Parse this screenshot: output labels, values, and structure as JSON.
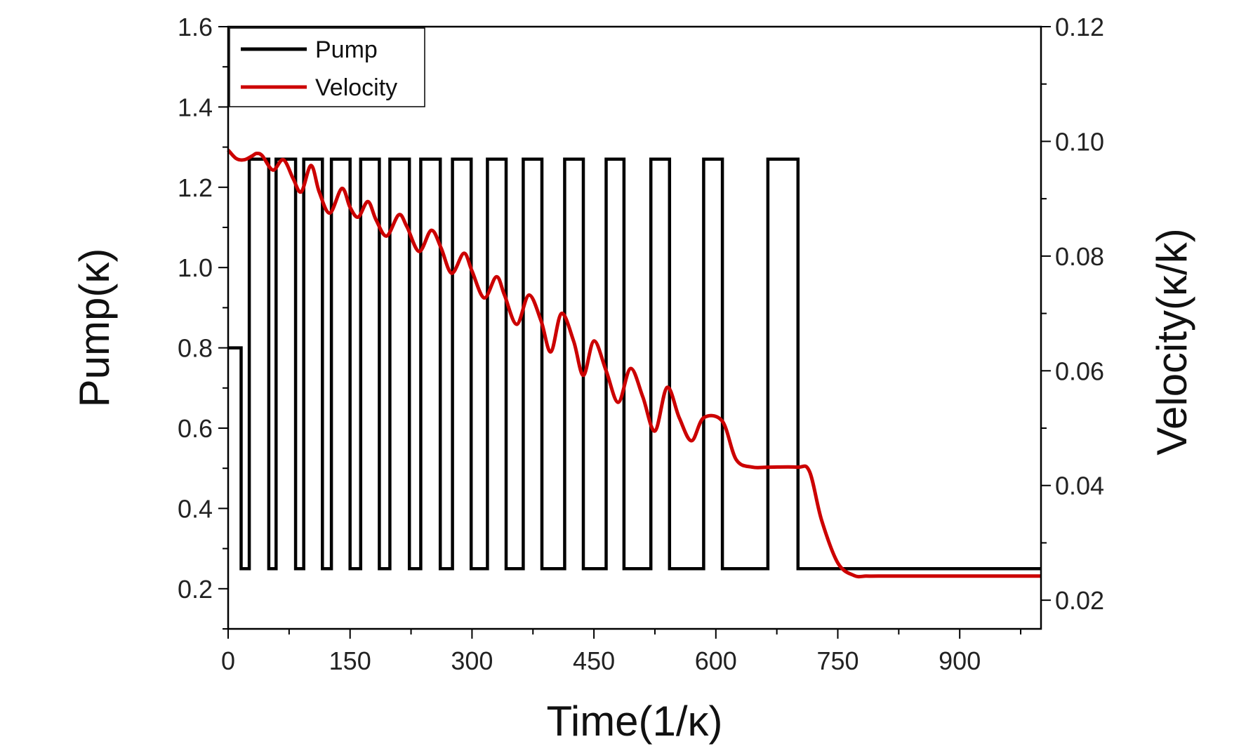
{
  "chart_data": {
    "type": "line",
    "xlabel": "Time(1/κ)",
    "ylabel_left": "Pump(κ)",
    "ylabel_right": "Velocity(κ/k)",
    "xlim": [
      0,
      1000
    ],
    "ylim_left": [
      0.1,
      1.6
    ],
    "ylim_right": [
      0.015,
      0.12
    ],
    "x_ticks": [
      "0",
      "150",
      "300",
      "450",
      "600",
      "750",
      "900"
    ],
    "y_left_ticks": [
      "0.2",
      "0.4",
      "0.6",
      "0.8",
      "1.0",
      "1.2",
      "1.4",
      "1.6"
    ],
    "y_right_ticks": [
      "0.02",
      "0.04",
      "0.06",
      "0.08",
      "0.10",
      "0.12"
    ],
    "grid": false,
    "legend_position": "top-left",
    "series": [
      {
        "name": "Pump",
        "axis": "left",
        "color": "#000000",
        "step": true,
        "x": [
          0,
          16,
          16,
          26,
          26,
          50,
          50,
          59,
          59,
          83,
          83,
          93,
          93,
          116,
          116,
          127,
          127,
          150,
          150,
          163,
          163,
          186,
          186,
          199,
          199,
          223,
          223,
          237,
          237,
          261,
          261,
          276,
          276,
          299,
          299,
          319,
          319,
          342,
          342,
          363,
          363,
          386,
          386,
          414,
          414,
          437,
          437,
          465,
          465,
          487,
          487,
          520,
          520,
          543,
          543,
          585,
          585,
          608,
          608,
          664,
          664,
          701,
          701,
          785,
          785,
          1000
        ],
        "values": [
          0.8,
          0.8,
          0.25,
          0.25,
          1.27,
          1.27,
          0.25,
          0.25,
          1.27,
          1.27,
          0.25,
          0.25,
          1.27,
          1.27,
          0.25,
          0.25,
          1.27,
          1.27,
          0.25,
          0.25,
          1.27,
          1.27,
          0.25,
          0.25,
          1.27,
          1.27,
          0.25,
          0.25,
          1.27,
          1.27,
          0.25,
          0.25,
          1.27,
          1.27,
          0.25,
          0.25,
          1.27,
          1.27,
          0.25,
          0.25,
          1.27,
          1.27,
          0.25,
          0.25,
          1.27,
          1.27,
          0.25,
          0.25,
          1.27,
          1.27,
          0.25,
          0.25,
          1.27,
          1.27,
          0.25,
          0.25,
          1.27,
          1.27,
          0.25,
          0.25,
          1.27,
          1.27,
          0.25,
          0.25,
          0.25,
          0.25
        ]
      },
      {
        "name": "Velocity",
        "axis": "right",
        "color": "#cc0000",
        "x": [
          0,
          10,
          20,
          30,
          35,
          42,
          55,
          68,
          80,
          90,
          102,
          112,
          125,
          140,
          150,
          160,
          172,
          182,
          195,
          210,
          220,
          235,
          250,
          262,
          275,
          290,
          300,
          315,
          330,
          340,
          355,
          370,
          385,
          397,
          410,
          425,
          437,
          450,
          465,
          480,
          495,
          510,
          525,
          540,
          555,
          570,
          585,
          608,
          625,
          645,
          665,
          700,
          715,
          730,
          750,
          770,
          785,
          800,
          850,
          900,
          950,
          1000
        ],
        "values": [
          0.0985,
          0.097,
          0.0968,
          0.0975,
          0.0979,
          0.0975,
          0.095,
          0.0968,
          0.0935,
          0.0912,
          0.0958,
          0.0912,
          0.0875,
          0.0918,
          0.0885,
          0.0868,
          0.0895,
          0.0863,
          0.0835,
          0.0872,
          0.0851,
          0.0808,
          0.0845,
          0.0814,
          0.077,
          0.0805,
          0.0774,
          0.0727,
          0.0764,
          0.0732,
          0.0681,
          0.0732,
          0.0687,
          0.0633,
          0.07,
          0.0652,
          0.0592,
          0.0652,
          0.06,
          0.0545,
          0.0604,
          0.0555,
          0.0495,
          0.0571,
          0.0518,
          0.0478,
          0.0518,
          0.0512,
          0.0445,
          0.0432,
          0.0432,
          0.0432,
          0.0425,
          0.034,
          0.0265,
          0.0243,
          0.0242,
          0.0242,
          0.0242,
          0.0242,
          0.0242,
          0.0242
        ]
      }
    ]
  }
}
